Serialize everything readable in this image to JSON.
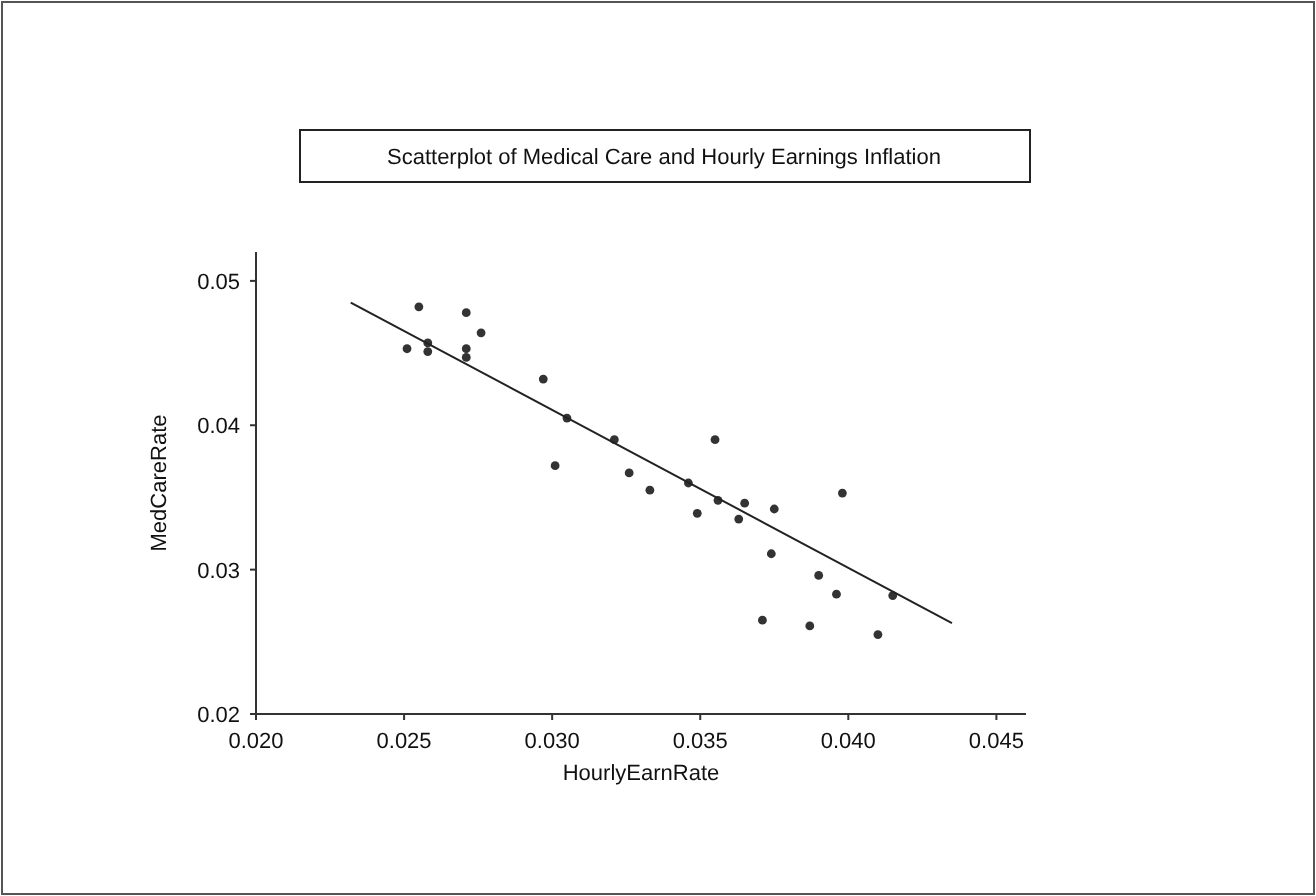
{
  "chart_data": {
    "type": "scatter",
    "title": "Scatterplot of Medical Care and Hourly Earnings Inflation",
    "xlabel": "HourlyEarnRate",
    "ylabel": "MedCareRate",
    "xlim": [
      0.02,
      0.046
    ],
    "ylim": [
      0.02,
      0.052
    ],
    "xticks": [
      {
        "value": 0.02,
        "label": "0.020"
      },
      {
        "value": 0.025,
        "label": "0.025"
      },
      {
        "value": 0.03,
        "label": "0.030"
      },
      {
        "value": 0.035,
        "label": "0.035"
      },
      {
        "value": 0.04,
        "label": "0.040"
      },
      {
        "value": 0.045,
        "label": "0.045"
      }
    ],
    "yticks": [
      {
        "value": 0.02,
        "label": "0.02"
      },
      {
        "value": 0.03,
        "label": "0.03"
      },
      {
        "value": 0.04,
        "label": "0.04"
      },
      {
        "value": 0.05,
        "label": "0.05"
      }
    ],
    "grid": false,
    "marker": "circle",
    "series": [
      {
        "color": "#333333",
        "x": [
          0.0255,
          0.0271,
          0.0276,
          0.0251,
          0.0258,
          0.0271,
          0.0271,
          0.0297,
          0.0258,
          0.0305,
          0.0301,
          0.0321,
          0.0355,
          0.0326,
          0.0346,
          0.0333,
          0.0349,
          0.0356,
          0.0365,
          0.0375,
          0.0363,
          0.0398,
          0.0374,
          0.039,
          0.0396,
          0.0415,
          0.0371,
          0.0387,
          0.041
        ],
        "values": [
          0.0482,
          0.0478,
          0.0464,
          0.0453,
          0.0451,
          0.0453,
          0.0447,
          0.0432,
          0.0457,
          0.0405,
          0.0372,
          0.039,
          0.039,
          0.0367,
          0.036,
          0.0355,
          0.0339,
          0.0348,
          0.0346,
          0.0342,
          0.0335,
          0.0353,
          0.0311,
          0.0296,
          0.0283,
          0.0282,
          0.0265,
          0.0261,
          0.0255
        ]
      },
      {
        "type": "line",
        "color": "#222222",
        "x": [
          0.0232,
          0.0435
        ],
        "values": [
          0.0485,
          0.0263
        ],
        "marker": "none",
        "line_style": "solid"
      }
    ]
  }
}
